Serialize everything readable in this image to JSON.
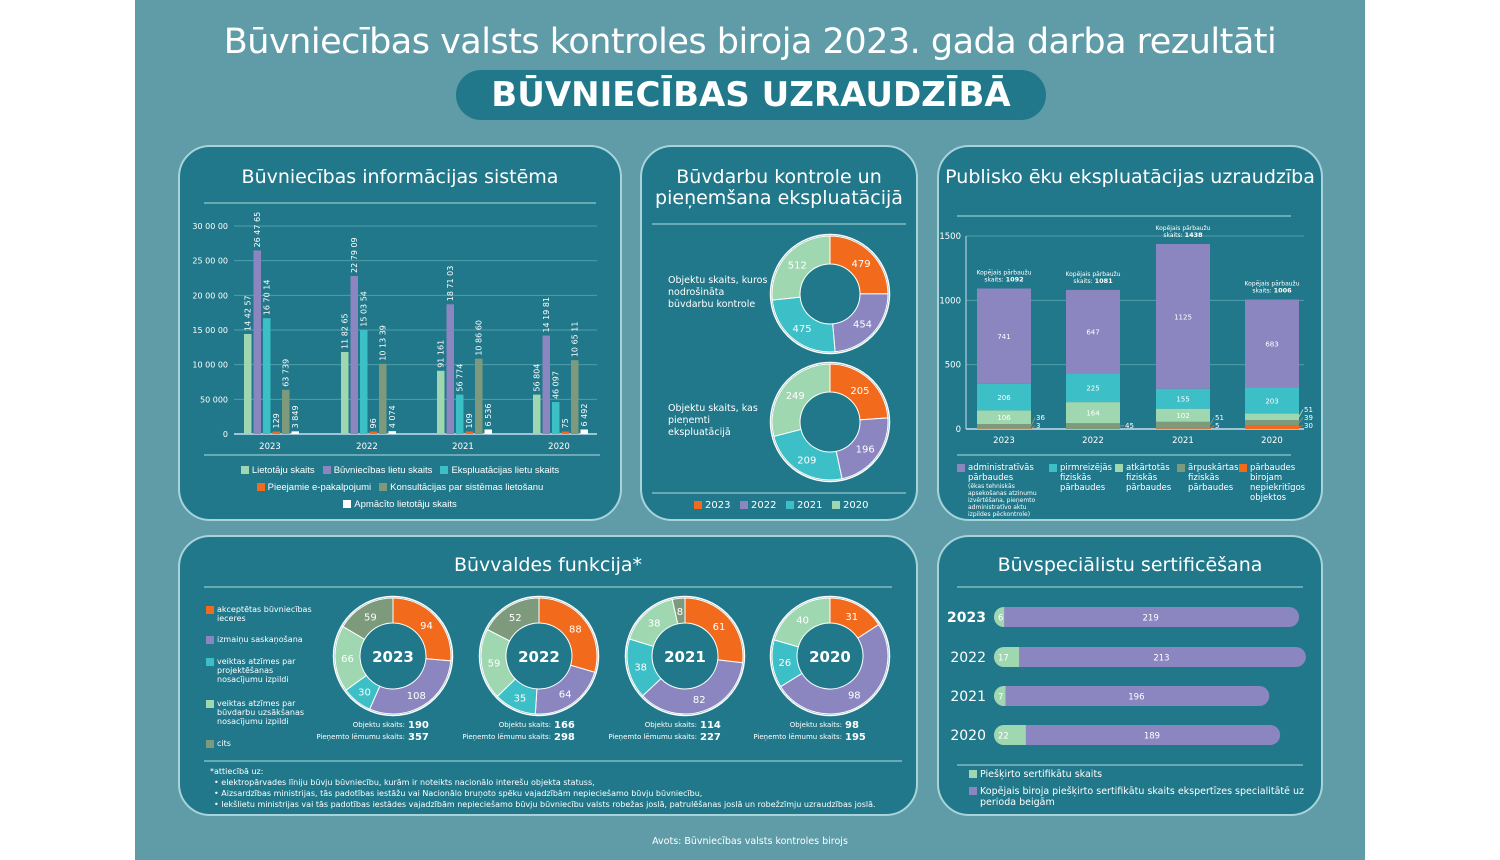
{
  "header": {
    "title": "Būvniecības valsts kontroles biroja 2023. gada darba rezultāti",
    "subtitle": "BŪVNIECĪBAS UZRAUDZĪBĀ"
  },
  "colors": {
    "background": "#5f9ca8",
    "panel": "#21788a",
    "green": "#9fd8b0",
    "purple": "#8b86c0",
    "cyan": "#3cbfc6",
    "orange": "#f26a1b",
    "olive": "#7d9a7c",
    "white": "#ffffff"
  },
  "source": "Avots: Būvniecības valsts kontroles birojs",
  "chart_data": [
    {
      "id": "bis",
      "type": "bar",
      "title": "Būvniecības informācijas sistēma",
      "categories": [
        "2023",
        "2022",
        "2021",
        "2020"
      ],
      "ylim": [
        0,
        300000
      ],
      "yticks": [
        {
          "v": 0,
          "label": "0"
        },
        {
          "v": 50000,
          "label": "50 000"
        },
        {
          "v": 100000,
          "label": "10 00 00"
        },
        {
          "v": 150000,
          "label": "15 00 00"
        },
        {
          "v": 200000,
          "label": "20 00 00"
        },
        {
          "v": 250000,
          "label": "25 00 00"
        },
        {
          "v": 300000,
          "label": "30 00 00"
        }
      ],
      "grid": true,
      "legend": "bottom",
      "series": [
        {
          "name": "Lietotāju skaits",
          "color": "#9fd8b0",
          "values": [
            144257,
            118265,
            91161,
            56804
          ],
          "labels": [
            "14 42 57",
            "11 82 65",
            "91 161",
            "56 804"
          ]
        },
        {
          "name": "Būvniecības lietu skaits",
          "color": "#8b86c0",
          "values": [
            264765,
            227909,
            187103,
            141981
          ],
          "labels": [
            "26 47 65",
            "22 79 09",
            "18 71 03",
            "14 19 81"
          ]
        },
        {
          "name": "Ekspluatācijas lietu skaits",
          "color": "#3cbfc6",
          "values": [
            167014,
            150354,
            56774,
            46097
          ],
          "labels": [
            "16 70 14",
            "15 03 54",
            "56 774",
            "46 097"
          ]
        },
        {
          "name": "Pieejamie e-pakalpojumi",
          "color": "#f26a1b",
          "values": [
            129,
            96,
            109,
            75
          ],
          "labels": [
            "129",
            "96",
            "109",
            "75"
          ]
        },
        {
          "name": "Konsultācijas par sistēmas lietošanu",
          "color": "#7d9a7c",
          "values": [
            63739,
            101339,
            108660,
            106511
          ],
          "labels": [
            "63 739",
            "10 13 39",
            "10 86 60",
            "10 65 11"
          ]
        },
        {
          "name": "Apmācīto lietotāju skaits",
          "color": "#ffffff",
          "values": [
            3849,
            4074,
            6536,
            6492
          ],
          "labels": [
            "3 849",
            "4 074",
            "6 536",
            "6 492"
          ]
        }
      ]
    },
    {
      "id": "kontrole",
      "type": "pie",
      "title": "Būvdarbu kontrole un pieņemšana ekspluatācijā",
      "legend": "bottom",
      "categories": [
        "2023",
        "2022",
        "2021",
        "2020"
      ],
      "category_colors": [
        "#f26a1b",
        "#8b86c0",
        "#3cbfc6",
        "#9fd8b0"
      ],
      "charts": [
        {
          "label": "Objektu skaits, kuros nodrošināta būvdarbu kontrole",
          "values": [
            479,
            454,
            475,
            512
          ]
        },
        {
          "label": "Objektu skaits, kas pieņemti ekspluatācijā",
          "values": [
            205,
            196,
            209,
            249
          ]
        }
      ]
    },
    {
      "id": "publiskas",
      "type": "bar",
      "stacked": true,
      "title": "Publisko ēku ekspluatācijas uzraudzība",
      "categories": [
        "2023",
        "2022",
        "2021",
        "2020"
      ],
      "ylim": [
        0,
        1500
      ],
      "yticks": [
        0,
        500,
        1000,
        1500
      ],
      "grid": true,
      "legend": "bottom",
      "total_label": "Kopējais pārbaužu skaits:",
      "totals": [
        1092,
        1081,
        1438,
        1006
      ],
      "series": [
        {
          "name": "pārbaudes birojam nepiekritīgos objektos",
          "color": "#f26a1b",
          "values": [
            3,
            0,
            5,
            30
          ]
        },
        {
          "name": "ārpuskārtas fiziskās pārbaudes",
          "color": "#7d9a7c",
          "values": [
            36,
            45,
            51,
            39
          ]
        },
        {
          "name": "atkārtotās fiziskās pārbaudes",
          "color": "#9fd8b0",
          "values": [
            106,
            164,
            102,
            51
          ]
        },
        {
          "name": "pirmreizējās fiziskās pārbaudes",
          "color": "#3cbfc6",
          "values": [
            206,
            225,
            155,
            203
          ]
        },
        {
          "name": "administratīvās pārbaudes",
          "note": "(ēkas tehniskās apsekošanas atzinumu izvērtēšana, pieņemto administratīvo aktu izpildes pēckontrole)",
          "color": "#8b86c0",
          "values": [
            741,
            647,
            1125,
            683
          ]
        }
      ]
    },
    {
      "id": "buvvalde",
      "type": "pie",
      "title": "Būvvaldes funkcija*",
      "legend": "left",
      "categories": [
        "akceptētas būvniecības ieceres",
        "izmaiņu saskaņošana",
        "veiktas atzīmes par projektēšanas nosacījumu izpildi",
        "veiktas atzīmes par būvdarbu uzsākšanas nosacījumu izpildi",
        "cits"
      ],
      "category_colors": [
        "#f26a1b",
        "#8b86c0",
        "#3cbfc6",
        "#9fd8b0",
        "#7d9a7c"
      ],
      "objects_label": "Objektu skaits:",
      "decisions_label": "Pieņemto lēmumu skaits:",
      "charts": [
        {
          "year": "2023",
          "values": [
            94,
            108,
            30,
            66,
            59
          ],
          "objects": 190,
          "decisions": 357
        },
        {
          "year": "2022",
          "values": [
            88,
            64,
            35,
            59,
            52
          ],
          "objects": 166,
          "decisions": 298
        },
        {
          "year": "2021",
          "values": [
            61,
            82,
            38,
            38,
            8
          ],
          "objects": 114,
          "decisions": 227
        },
        {
          "year": "2020",
          "values": [
            31,
            98,
            26,
            40,
            0
          ],
          "objects": 98,
          "decisions": 195
        }
      ],
      "footnote": {
        "head": "*attiecībā uz:",
        "items": [
          "elektropārvades līniju būvju būvniecību, kurām ir noteikts nacionālo interešu objekta statuss,",
          "Aizsardzības ministrijas, tās padotības iestāžu vai Nacionālo bruņoto spēku vajadzībām nepieciešamo būvju būvniecību,",
          "Iekšlietu ministrijas vai tās padotības iestādes vajadzībām nepieciešamo būvju būvniecību valsts robežas joslā, patrulēšanas joslā un robežzīmju uzraudzības joslā."
        ]
      }
    },
    {
      "id": "sertifikati",
      "type": "bar",
      "orientation": "horizontal",
      "stacked": true,
      "title": "Būvspeciālistu sertificēšana",
      "categories": [
        "2023",
        "2022",
        "2021",
        "2020"
      ],
      "legend": "bottom",
      "series": [
        {
          "name": "Piešķirto sertifikātu skaits",
          "color": "#9fd8b0",
          "values": [
            6,
            17,
            7,
            22
          ]
        },
        {
          "name": "Kopējais biroja piešķirto sertifikātu skaits ekspertīzes specialitātē uz perioda beigām",
          "color": "#8b86c0",
          "values": [
            219,
            213,
            196,
            189
          ]
        }
      ]
    }
  ]
}
